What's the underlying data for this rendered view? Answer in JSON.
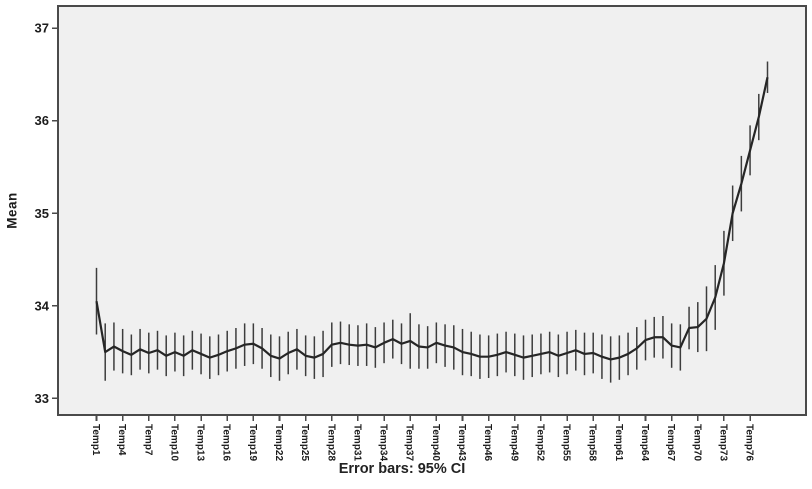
{
  "accent_colors": {
    "plot_background": "#f0f0f0",
    "page_background": "#ffffff",
    "frame": "#4a4a4a",
    "mean_line": "#262626",
    "error_bar": "#3d3d3d",
    "text": "#1c1c1c"
  },
  "chart_data": {
    "type": "line",
    "subtype": "mean-line-with-error-bars",
    "title": "",
    "xlabel": "",
    "ylabel": "Mean",
    "caption": "Error bars: 95% CI",
    "legend_position": "none",
    "grid": false,
    "yticks": [
      33,
      34,
      35,
      36,
      37
    ],
    "ylim": [
      32.82,
      37.24
    ],
    "x_tick_every": 3,
    "x_tick_labels": [
      "Temp1",
      "Temp4",
      "Temp7",
      "Temp10",
      "Temp13",
      "Temp16",
      "Temp19",
      "Temp22",
      "Temp25",
      "Temp28",
      "Temp31",
      "Temp34",
      "Temp37",
      "Temp40",
      "Temp43",
      "Temp46",
      "Temp49",
      "Temp52",
      "Temp55",
      "Temp58",
      "Temp61",
      "Temp64",
      "Temp67",
      "Temp70",
      "Temp73",
      "Temp76"
    ],
    "categories": [
      "Temp1",
      "Temp2",
      "Temp3",
      "Temp4",
      "Temp5",
      "Temp6",
      "Temp7",
      "Temp8",
      "Temp9",
      "Temp10",
      "Temp11",
      "Temp12",
      "Temp13",
      "Temp14",
      "Temp15",
      "Temp16",
      "Temp17",
      "Temp18",
      "Temp19",
      "Temp20",
      "Temp21",
      "Temp22",
      "Temp23",
      "Temp24",
      "Temp25",
      "Temp26",
      "Temp27",
      "Temp28",
      "Temp29",
      "Temp30",
      "Temp31",
      "Temp32",
      "Temp33",
      "Temp34",
      "Temp35",
      "Temp36",
      "Temp37",
      "Temp38",
      "Temp39",
      "Temp40",
      "Temp41",
      "Temp42",
      "Temp43",
      "Temp44",
      "Temp45",
      "Temp46",
      "Temp47",
      "Temp48",
      "Temp49",
      "Temp50",
      "Temp51",
      "Temp52",
      "Temp53",
      "Temp54",
      "Temp55",
      "Temp56",
      "Temp57",
      "Temp58",
      "Temp59",
      "Temp60",
      "Temp61",
      "Temp62",
      "Temp63",
      "Temp64",
      "Temp65",
      "Temp66",
      "Temp67",
      "Temp68",
      "Temp69",
      "Temp70",
      "Temp71",
      "Temp72",
      "Temp73",
      "Temp74",
      "Temp75",
      "Temp76",
      "Temp77",
      "Temp78"
    ],
    "series": [
      {
        "name": "Mean",
        "values": [
          34.05,
          33.5,
          33.56,
          33.51,
          33.47,
          33.53,
          33.49,
          33.52,
          33.46,
          33.5,
          33.46,
          33.52,
          33.48,
          33.44,
          33.47,
          33.51,
          33.54,
          33.58,
          33.59,
          33.54,
          33.46,
          33.43,
          33.49,
          33.53,
          33.46,
          33.44,
          33.48,
          33.58,
          33.6,
          33.58,
          33.57,
          33.58,
          33.55,
          33.6,
          33.64,
          33.59,
          33.62,
          33.56,
          33.55,
          33.6,
          33.57,
          33.55,
          33.5,
          33.48,
          33.45,
          33.45,
          33.47,
          33.5,
          33.47,
          33.44,
          33.46,
          33.48,
          33.5,
          33.46,
          33.49,
          33.52,
          33.48,
          33.49,
          33.45,
          33.42,
          33.44,
          33.48,
          33.54,
          33.63,
          33.66,
          33.66,
          33.57,
          33.55,
          33.76,
          33.77,
          33.86,
          34.09,
          34.46,
          35.0,
          35.32,
          35.68,
          36.04,
          36.47
        ],
        "ci_half_width": [
          0.36,
          0.31,
          0.26,
          0.24,
          0.22,
          0.22,
          0.22,
          0.21,
          0.22,
          0.21,
          0.22,
          0.21,
          0.22,
          0.23,
          0.22,
          0.22,
          0.22,
          0.23,
          0.22,
          0.22,
          0.23,
          0.24,
          0.23,
          0.22,
          0.22,
          0.23,
          0.25,
          0.24,
          0.23,
          0.22,
          0.22,
          0.23,
          0.22,
          0.22,
          0.21,
          0.22,
          0.3,
          0.24,
          0.23,
          0.22,
          0.23,
          0.24,
          0.25,
          0.24,
          0.24,
          0.23,
          0.23,
          0.22,
          0.23,
          0.24,
          0.23,
          0.22,
          0.22,
          0.23,
          0.23,
          0.22,
          0.23,
          0.22,
          0.24,
          0.25,
          0.24,
          0.23,
          0.23,
          0.22,
          0.22,
          0.23,
          0.24,
          0.25,
          0.23,
          0.27,
          0.35,
          0.35,
          0.35,
          0.3,
          0.3,
          0.27,
          0.25,
          0.17
        ]
      }
    ]
  }
}
